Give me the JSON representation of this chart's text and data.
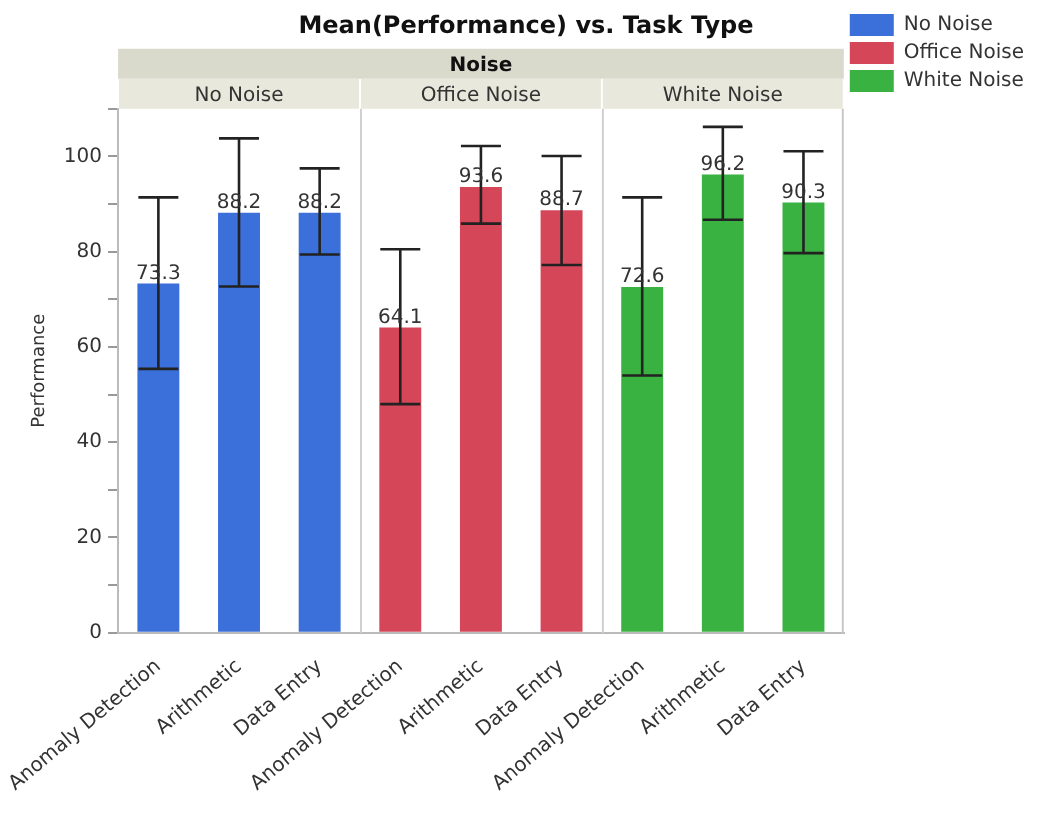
{
  "chart_data": {
    "type": "bar",
    "title": "Mean(Performance) vs. Task Type",
    "subtitle": "Noise",
    "ylabel": "Performance",
    "categories": [
      "Anomaly Detection",
      "Arithmetic",
      "Data Entry",
      "Anomaly Detection",
      "Arithmetic",
      "Data Entry",
      "Anomaly Detection",
      "Arithmetic",
      "Data Entry"
    ],
    "series": [
      {
        "name": "No Noise",
        "color": "#3b6fd9",
        "values": [
          73.3,
          88.2,
          88.2,
          null,
          null,
          null,
          null,
          null,
          null
        ],
        "errors": [
          [
            55.4,
            91.4
          ],
          [
            72.7,
            103.8
          ],
          [
            79.4,
            97.5
          ],
          null,
          null,
          null,
          null,
          null,
          null
        ]
      },
      {
        "name": "Office Noise",
        "color": "#d54658",
        "values": [
          null,
          null,
          null,
          64.1,
          93.6,
          88.7,
          null,
          null,
          null
        ],
        "errors": [
          null,
          null,
          null,
          [
            48,
            80.5
          ],
          [
            85.9,
            102.2
          ],
          [
            77.2,
            100.1
          ],
          null,
          null,
          null
        ]
      },
      {
        "name": "White Noise",
        "color": "#39b242",
        "values": [
          null,
          null,
          null,
          null,
          null,
          null,
          72.6,
          96.2,
          90.3
        ],
        "errors": [
          null,
          null,
          null,
          null,
          null,
          null,
          [
            54,
            91.4
          ],
          [
            86.7,
            106.2
          ],
          [
            79.7,
            101.1
          ]
        ]
      }
    ],
    "ylim": [
      0,
      110
    ],
    "yticks": [
      0,
      {
        "value": 10,
        "label": null
      },
      20,
      {
        "value": 30,
        "label": null
      },
      40,
      {
        "value": 50,
        "label": null
      },
      60,
      {
        "value": 70,
        "label": null
      },
      80,
      {
        "value": 90,
        "label": null
      },
      100,
      {
        "value": 110,
        "label": null
      }
    ],
    "data_labels": true,
    "legend": "top right"
  }
}
